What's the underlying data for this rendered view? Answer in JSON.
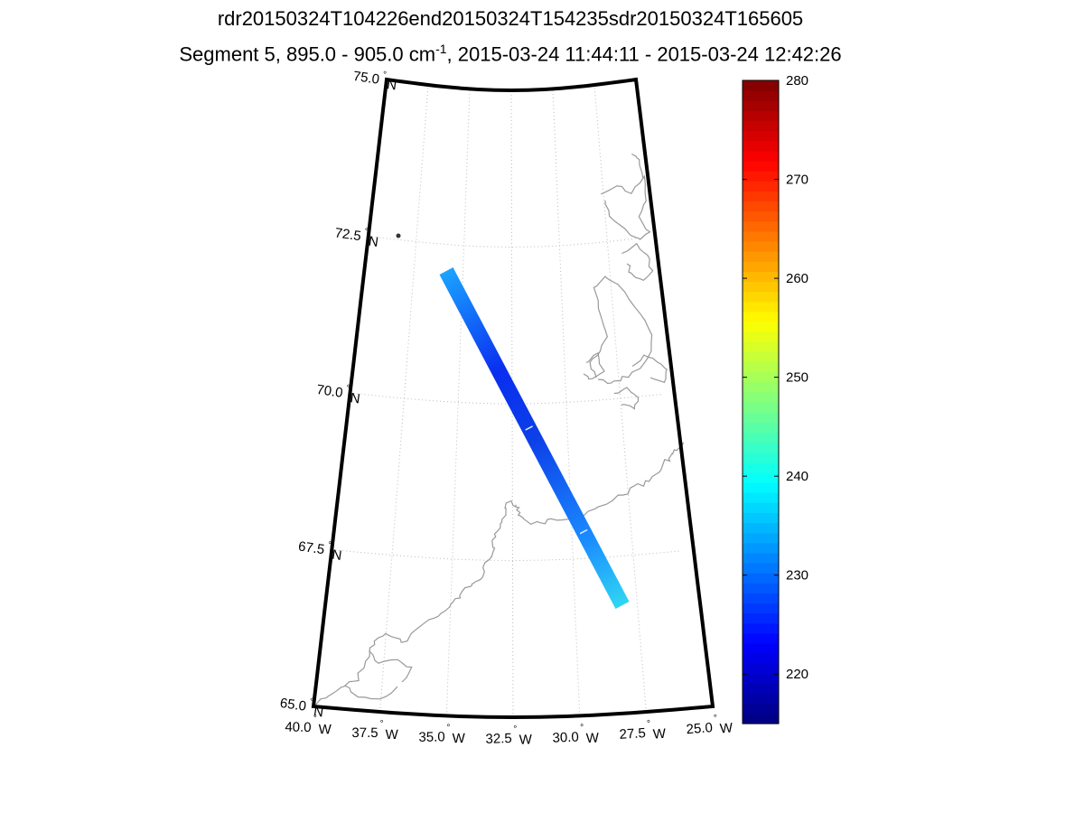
{
  "title": {
    "line1": "rdr20150324T104226end20150324T154235sdr20150324T165605",
    "line2_prefix": "Segment 5, 895.0 - 905.0 cm",
    "line2_exponent": "-1",
    "line2_suffix": ", 2015-03-24 11:44:11 - 2015-03-24 12:42:26"
  },
  "map": {
    "lat_labels": [
      "75.0",
      "72.5",
      "70.0",
      "67.5",
      "65.0"
    ],
    "lat_hemisphere": "N",
    "lon_labels": [
      "40.0",
      "37.5",
      "35.0",
      "32.5",
      "30.0",
      "27.5",
      "25.0"
    ],
    "lon_hemisphere": "W",
    "degree_symbol": "°",
    "grid_color": "#bbbbbb",
    "coast_color": "#999999",
    "swath": {
      "start": {
        "lat": 72.0,
        "lon": -34.4
      },
      "end": {
        "lat": 66.6,
        "lon": -28.1
      },
      "value_start": 233,
      "value_mid": 221,
      "value_end": 238
    }
  },
  "colorbar": {
    "min": 215,
    "max": 280,
    "tick_labels": [
      "220",
      "230",
      "240",
      "250",
      "260",
      "270",
      "280"
    ],
    "tick_values": [
      220,
      230,
      240,
      250,
      260,
      270,
      280
    ]
  }
}
